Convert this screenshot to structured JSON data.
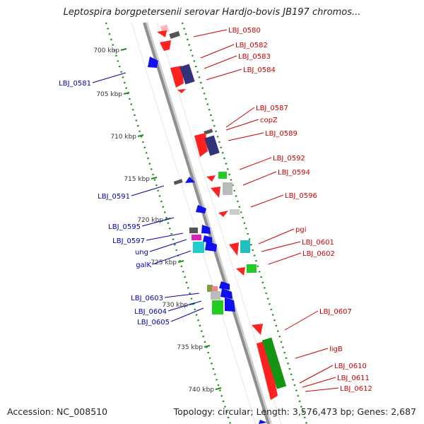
{
  "title": "Leptospira borgpetersenii serovar Hardjo-bovis JB197 chromos...",
  "accession": "Accession: NC_008510",
  "topology": "Topology: circular; Length: 3,576,473 bp; Genes: 2,687",
  "colors": {
    "forward_label": "#cc0000",
    "reverse_label": "#0000aa",
    "tick": "#228b22",
    "backbone": "#999999"
  },
  "kbp_ticks": [
    {
      "label": "700 kbp"
    },
    {
      "label": "705 kbp"
    },
    {
      "label": "710 kbp"
    },
    {
      "label": "715 kbp"
    },
    {
      "label": "720 kbp"
    },
    {
      "label": "725 kbp"
    },
    {
      "label": "730 kbp"
    },
    {
      "label": "735 kbp"
    },
    {
      "label": "740 kbp"
    }
  ],
  "gene_labels": [
    {
      "text": "LBJ_0580",
      "strand": "forward"
    },
    {
      "text": "LBJ_0582",
      "strand": "forward"
    },
    {
      "text": "LBJ_0583",
      "strand": "forward"
    },
    {
      "text": "LBJ_0584",
      "strand": "forward"
    },
    {
      "text": "LBJ_0587",
      "strand": "forward"
    },
    {
      "text": "copZ",
      "strand": "forward"
    },
    {
      "text": "LBJ_0589",
      "strand": "forward"
    },
    {
      "text": "LBJ_0592",
      "strand": "forward"
    },
    {
      "text": "LBJ_0594",
      "strand": "forward"
    },
    {
      "text": "LBJ_0596",
      "strand": "forward"
    },
    {
      "text": "pgi",
      "strand": "forward"
    },
    {
      "text": "LBJ_0601",
      "strand": "forward"
    },
    {
      "text": "LBJ_0602",
      "strand": "forward"
    },
    {
      "text": "LBJ_0607",
      "strand": "forward"
    },
    {
      "text": "ligB",
      "strand": "forward"
    },
    {
      "text": "LBJ_0610",
      "strand": "forward"
    },
    {
      "text": "LBJ_0611",
      "strand": "forward"
    },
    {
      "text": "LBJ_0612",
      "strand": "forward"
    },
    {
      "text": "LBJ_0581",
      "strand": "reverse"
    },
    {
      "text": "LBJ_0591",
      "strand": "reverse"
    },
    {
      "text": "LBJ_0595",
      "strand": "reverse"
    },
    {
      "text": "LBJ_0597",
      "strand": "reverse"
    },
    {
      "text": "ung",
      "strand": "reverse"
    },
    {
      "text": "galK",
      "strand": "reverse"
    },
    {
      "text": "LBJ_0603",
      "strand": "reverse"
    },
    {
      "text": "LBJ_0604",
      "strand": "reverse"
    },
    {
      "text": "LBJ_0605",
      "strand": "reverse"
    }
  ]
}
